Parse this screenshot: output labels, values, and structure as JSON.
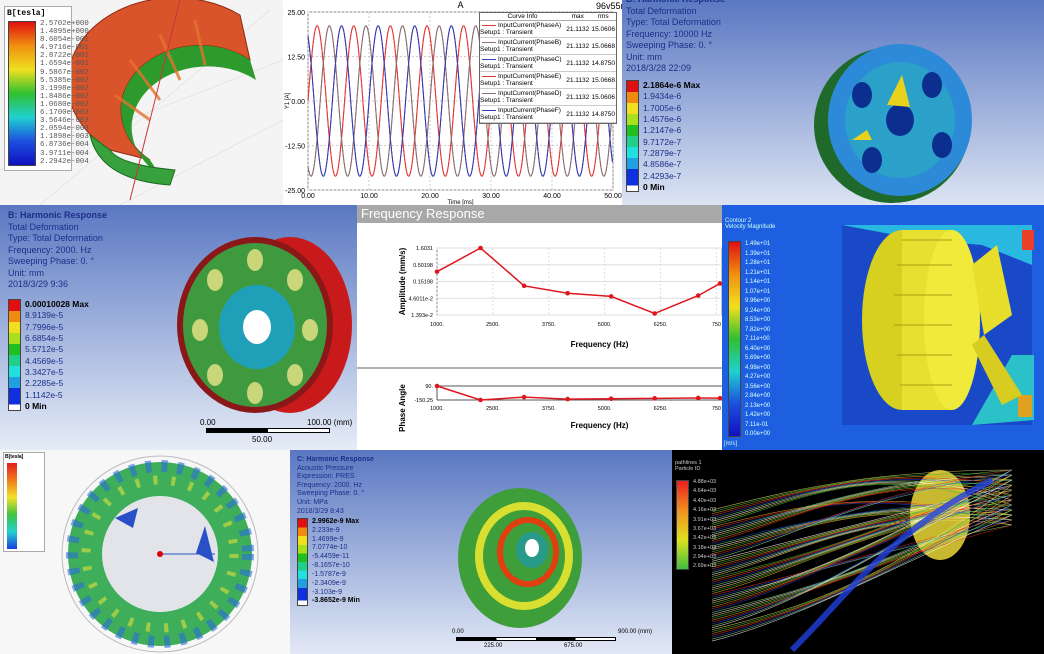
{
  "colors": {
    "ansys_bg_top": "#4f72c0",
    "ansys_bg_bottom": "#dfe6f4",
    "series_red": "#e23a3a",
    "series_blue": "#3a3ab0",
    "series_gray": "#8a7070",
    "fr_line": "#e0161e",
    "fr_header": "#a8a8a8"
  },
  "p1": {
    "legend_title": "B[tesla]",
    "legend": [
      "2.5702e+000",
      "1.4095e+000",
      "8.6054e-001",
      "4.9716e-001",
      "2.8722e-001",
      "1.6594e-001",
      "9.5867e-002",
      "5.5385e-002",
      "3.1998e-002",
      "1.8486e-002",
      "1.0680e-002",
      "6.1700e-003",
      "3.5646e-003",
      "2.0594e-003",
      "1.1898e-003",
      "6.8736e-004",
      "3.9711e-004",
      "2.2942e-004"
    ]
  },
  "p2": {
    "title": "A",
    "project": "96v55nm180",
    "ylabel": "Y1 [A]",
    "legend_headers": [
      "Curve Info",
      "max",
      "rms"
    ],
    "legend_rows": [
      {
        "name": "InputCurrent(PhaseA)",
        "setup": "Setup1 : Transient",
        "max": "21.1132",
        "rms": "15.0606",
        "color": "#e23a3a"
      },
      {
        "name": "InputCurrent(PhaseB)",
        "setup": "Setup1 : Transient",
        "max": "21.1132",
        "rms": "15.0668",
        "color": "#8a7070"
      },
      {
        "name": "InputCurrent(PhaseC)",
        "setup": "Setup1 : Transient",
        "max": "21.1132",
        "rms": "14.8750",
        "color": "#3a3ab0"
      },
      {
        "name": "InputCurrent(PhaseE)",
        "setup": "Setup1 : Transient",
        "max": "21.1132",
        "rms": "15.0668",
        "color": "#e23a3a"
      },
      {
        "name": "InputCurrent(PhaseD)",
        "setup": "Setup1 : Transient",
        "max": "21.1132",
        "rms": "15.0606",
        "color": "#8a7070"
      },
      {
        "name": "InputCurrent(PhaseF)",
        "setup": "Setup1 : Transient",
        "max": "21.1132",
        "rms": "14.8750",
        "color": "#3a3ab0"
      }
    ]
  },
  "p3": {
    "info": [
      "B: Harmonic Response",
      "Total Deformation",
      "Type: Total Deformation",
      "Frequency: 10000 Hz",
      "Sweeping Phase: 0. °",
      "Unit: mm",
      "2018/3/28 22:09"
    ],
    "legend": [
      "2.1864e-6 Max",
      "1.9434e-6",
      "1.7005e-6",
      "1.4576e-6",
      "1.2147e-6",
      "9.7172e-7",
      "7.2879e-7",
      "4.8586e-7",
      "2.4293e-7",
      "0 Min"
    ]
  },
  "p4": {
    "info": [
      "B: Harmonic Response",
      "Total Deformation",
      "Type: Total Deformation",
      "Frequency: 2000. Hz",
      "Sweeping Phase: 0. °",
      "Unit: mm",
      "2018/3/29 9:36"
    ],
    "legend": [
      "0.00010028 Max",
      "8.9139e-5",
      "7.7996e-5",
      "6.6854e-5",
      "5.5712e-5",
      "4.4569e-5",
      "3.3427e-5",
      "2.2285e-5",
      "1.1142e-5",
      "0 Min"
    ],
    "scale": {
      "left": "0.00",
      "right": "100.00 (mm)",
      "mid": "50.00"
    }
  },
  "p5": {
    "header": "Frequency Response"
  },
  "p6": {
    "title": "Contour 2",
    "subtitle": "Velocity Magnitude",
    "unit": "[m/s]",
    "legend": [
      "1.49e+01",
      "1.39e+01",
      "1.28e+01",
      "1.21e+01",
      "1.14e+01",
      "1.07e+01",
      "9.96e+00",
      "9.24e+00",
      "8.53e+00",
      "7.82e+00",
      "7.11e+00",
      "6.40e+00",
      "5.69e+00",
      "4.98e+00",
      "4.27e+00",
      "3.56e+00",
      "2.84e+00",
      "2.13e+00",
      "1.42e+00",
      "7.11e-01",
      "0.00e+00"
    ]
  },
  "p7": {
    "legend_title": "B[tesla]"
  },
  "p8": {
    "info": [
      "C: Harmonic Response",
      "Acoustic Pressure",
      "Expression: PRES",
      "Frequency: 2000. Hz",
      "Sweeping Phase: 0. °",
      "Unit: MPa",
      "2018/3/29 8:43"
    ],
    "legend": [
      "2.9962e-9 Max",
      "2.233e-9",
      "1.4699e-9",
      "7.0774e-10",
      "-5.4459e-11",
      "-8.1657e-10",
      "-1.5787e-9",
      "-2.3409e-9",
      "-3.103e-9",
      "-3.8652e-9 Min"
    ],
    "scale": {
      "left": "0.00",
      "right": "900.00 (mm)",
      "mid1": "225.00",
      "mid2": "675.00"
    }
  },
  "p9": {
    "title": "pathlines 1",
    "subtitle": "Particle ID",
    "legend": [
      "4.88e+03",
      "4.64e+03",
      "4.40e+03",
      "4.16e+03",
      "3.91e+03",
      "3.67e+03",
      "3.42e+03",
      "3.18e+03",
      "2.94e+03",
      "2.69e+03"
    ]
  },
  "chart_data": [
    {
      "type": "line",
      "title": "A",
      "xlabel": "Time [ms]",
      "ylabel": "Y1 [A]",
      "xlim": [
        0,
        50
      ],
      "ylim": [
        -25,
        25
      ],
      "xticks": [
        "0.00",
        "10.00",
        "20.00",
        "30.00",
        "40.00",
        "50.00"
      ],
      "yticks": [
        "25.00",
        "12.50",
        "0.00",
        "-12.50",
        "-25.00"
      ],
      "grid": true,
      "legend_placement": "top-right",
      "series": [
        {
          "name": "InputCurrent(PhaseA)",
          "function": "sine",
          "amplitude": 21.1132,
          "period_ms": 6.0,
          "phase_deg": 0
        },
        {
          "name": "InputCurrent(PhaseB)",
          "function": "sine",
          "amplitude": 21.1132,
          "period_ms": 6.0,
          "phase_deg": -120
        },
        {
          "name": "InputCurrent(PhaseC)",
          "function": "sine",
          "amplitude": 21.1132,
          "period_ms": 6.0,
          "phase_deg": 120
        },
        {
          "name": "InputCurrent(PhaseE)",
          "function": "sine",
          "amplitude": 21.1132,
          "period_ms": 6.0,
          "phase_deg": 0
        },
        {
          "name": "InputCurrent(PhaseD)",
          "function": "sine",
          "amplitude": 21.1132,
          "period_ms": 6.0,
          "phase_deg": -120
        },
        {
          "name": "InputCurrent(PhaseF)",
          "function": "sine",
          "amplitude": 21.1132,
          "period_ms": 6.0,
          "phase_deg": 120
        }
      ]
    },
    {
      "type": "line",
      "title": "",
      "xlabel": "Frequency (Hz)",
      "ylabel": "Amplitude (mm/s)",
      "yscale": "log",
      "ylim": [
        0.01393,
        1.6031
      ],
      "xlim": [
        1000,
        7500
      ],
      "xticks": [
        "1000.",
        "2500.",
        "3750.",
        "5000.",
        "6250.",
        "750"
      ],
      "yticks": [
        "1.6031",
        "0.50198",
        "0.15198",
        "4.6011e-2",
        "1.393e-2"
      ],
      "grid": true,
      "x": [
        1000,
        2000,
        3000,
        4000,
        5000,
        6000,
        7000,
        7500
      ],
      "values": [
        0.3,
        1.6031,
        0.11,
        0.065,
        0.052,
        0.0155,
        0.055,
        0.13
      ]
    },
    {
      "type": "line",
      "title": "",
      "xlabel": "Frequency (Hz)",
      "ylabel": "Phase Angle",
      "ylim": [
        -150.25,
        90
      ],
      "xlim": [
        1000,
        7500
      ],
      "xticks": [
        "1000.",
        "2500.",
        "3750.",
        "5000.",
        "6250.",
        "750"
      ],
      "yticks": [
        "90.",
        "-150.25"
      ],
      "x": [
        1000,
        2000,
        3000,
        4000,
        5000,
        6000,
        7000,
        7500
      ],
      "values": [
        90,
        -150,
        -100,
        -135,
        -128,
        -122,
        -115,
        -118
      ]
    }
  ]
}
